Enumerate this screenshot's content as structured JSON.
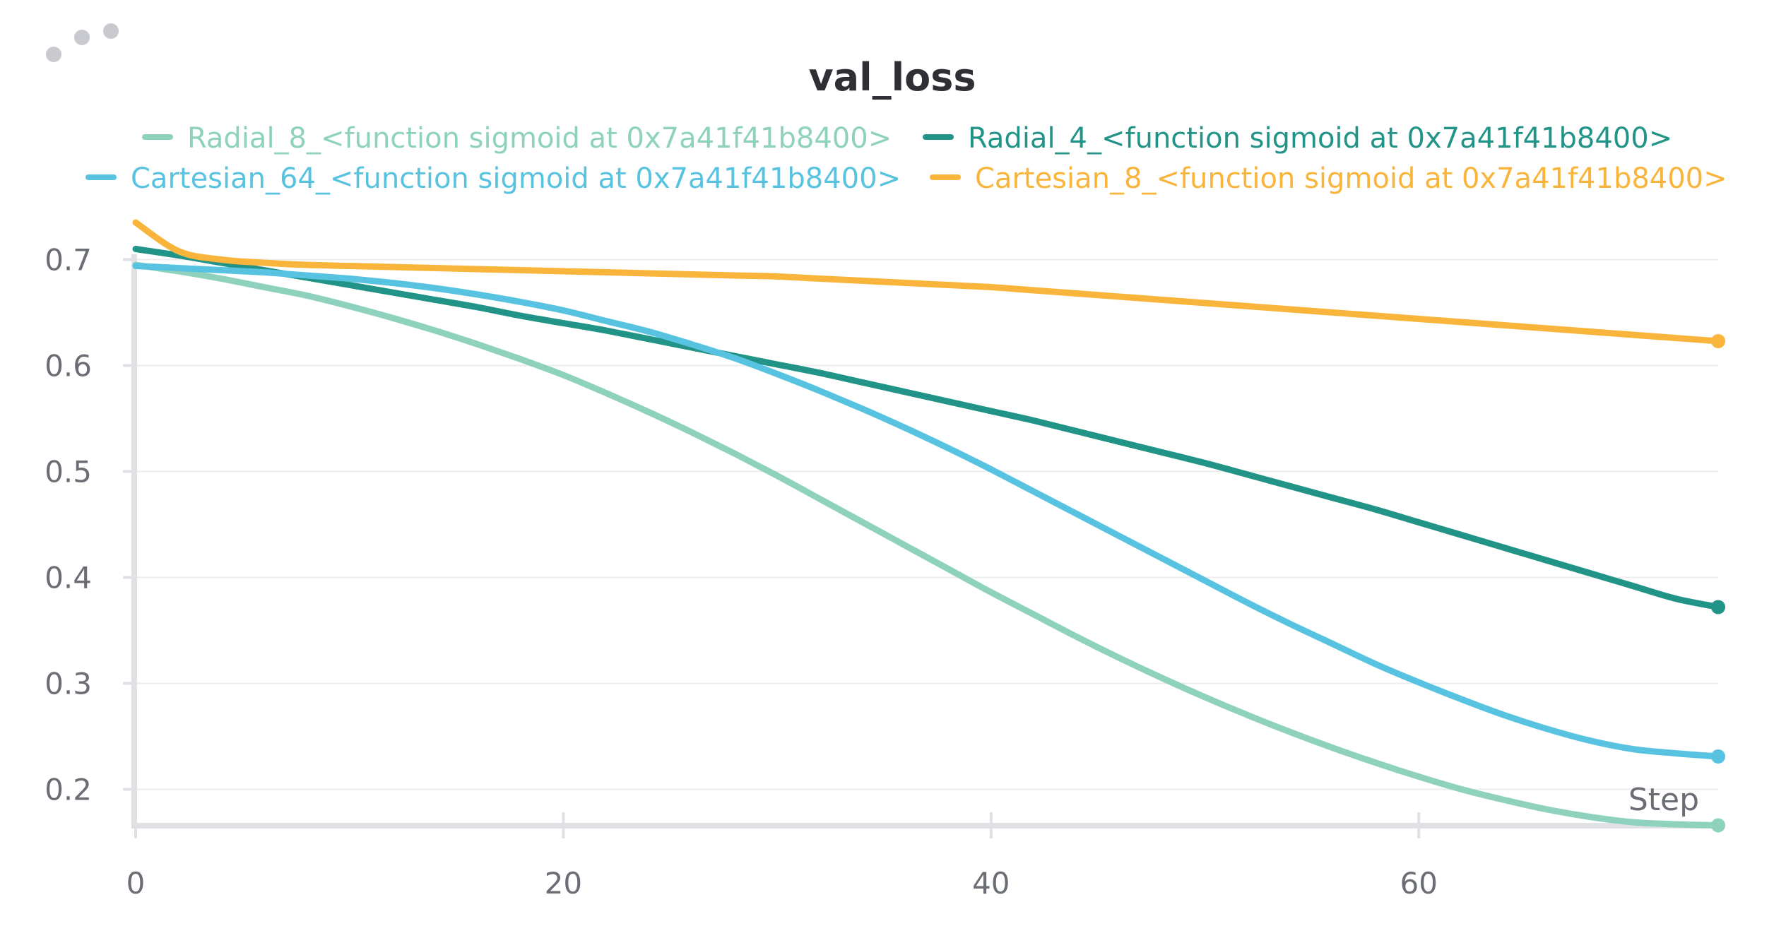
{
  "menu": {
    "icon": "more-dots-icon"
  },
  "chart_data": {
    "type": "line",
    "title": "val_loss",
    "xlabel": "Step",
    "ylabel": "",
    "xlim": [
      0,
      74
    ],
    "ylim": [
      0.165,
      0.745
    ],
    "x_ticks": [
      0,
      20,
      40,
      60
    ],
    "y_ticks": [
      0.2,
      0.3,
      0.4,
      0.5,
      0.6,
      0.7
    ],
    "x_tick_labels": [
      "0",
      "20",
      "40",
      "60"
    ],
    "y_tick_labels": [
      "0.2",
      "0.3",
      "0.4",
      "0.5",
      "0.6",
      "0.7"
    ],
    "grid": true,
    "legend_position": "top",
    "x": [
      0,
      2,
      4,
      6,
      8,
      10,
      12,
      14,
      16,
      18,
      20,
      22,
      24,
      26,
      28,
      30,
      32,
      34,
      36,
      38,
      40,
      42,
      44,
      46,
      48,
      50,
      52,
      54,
      56,
      58,
      60,
      62,
      64,
      66,
      68,
      70,
      72,
      74
    ],
    "series": [
      {
        "name": "Radial_8_<function sigmoid at 0x7a41f41b8400>",
        "color": "#8ed1bd",
        "values": [
          0.695,
          0.689,
          0.682,
          0.674,
          0.666,
          0.656,
          0.645,
          0.633,
          0.62,
          0.606,
          0.591,
          0.574,
          0.556,
          0.537,
          0.517,
          0.496,
          0.474,
          0.452,
          0.43,
          0.408,
          0.386,
          0.365,
          0.344,
          0.324,
          0.305,
          0.287,
          0.27,
          0.254,
          0.239,
          0.225,
          0.212,
          0.2,
          0.19,
          0.181,
          0.174,
          0.169,
          0.167,
          0.166
        ]
      },
      {
        "name": "Radial_4_<function sigmoid at 0x7a41f41b8400>",
        "color": "#229487",
        "values": [
          0.71,
          0.704,
          0.697,
          0.69,
          0.683,
          0.676,
          0.669,
          0.662,
          0.655,
          0.647,
          0.64,
          0.633,
          0.625,
          0.617,
          0.609,
          0.601,
          0.593,
          0.584,
          0.575,
          0.566,
          0.557,
          0.548,
          0.538,
          0.528,
          0.518,
          0.508,
          0.497,
          0.486,
          0.475,
          0.464,
          0.452,
          0.44,
          0.428,
          0.416,
          0.404,
          0.392,
          0.38,
          0.372
        ]
      },
      {
        "name": "Cartesian_64_<function sigmoid at 0x7a41f41b8400>",
        "color": "#58c3e0",
        "values": [
          0.694,
          0.692,
          0.69,
          0.688,
          0.685,
          0.682,
          0.678,
          0.673,
          0.667,
          0.66,
          0.652,
          0.642,
          0.632,
          0.62,
          0.607,
          0.592,
          0.576,
          0.559,
          0.541,
          0.522,
          0.502,
          0.481,
          0.46,
          0.439,
          0.418,
          0.397,
          0.376,
          0.356,
          0.337,
          0.318,
          0.301,
          0.285,
          0.27,
          0.257,
          0.246,
          0.238,
          0.234,
          0.231
        ]
      },
      {
        "name": "Cartesian_8_<function sigmoid at 0x7a41f41b8400>",
        "color": "#f9b53b",
        "values": [
          0.735,
          0.708,
          0.7,
          0.697,
          0.695,
          0.694,
          0.693,
          0.692,
          0.691,
          0.69,
          0.689,
          0.688,
          0.687,
          0.686,
          0.685,
          0.684,
          0.682,
          0.68,
          0.678,
          0.676,
          0.674,
          0.671,
          0.668,
          0.665,
          0.662,
          0.659,
          0.656,
          0.653,
          0.65,
          0.647,
          0.644,
          0.641,
          0.638,
          0.635,
          0.632,
          0.629,
          0.626,
          0.623
        ]
      }
    ]
  }
}
